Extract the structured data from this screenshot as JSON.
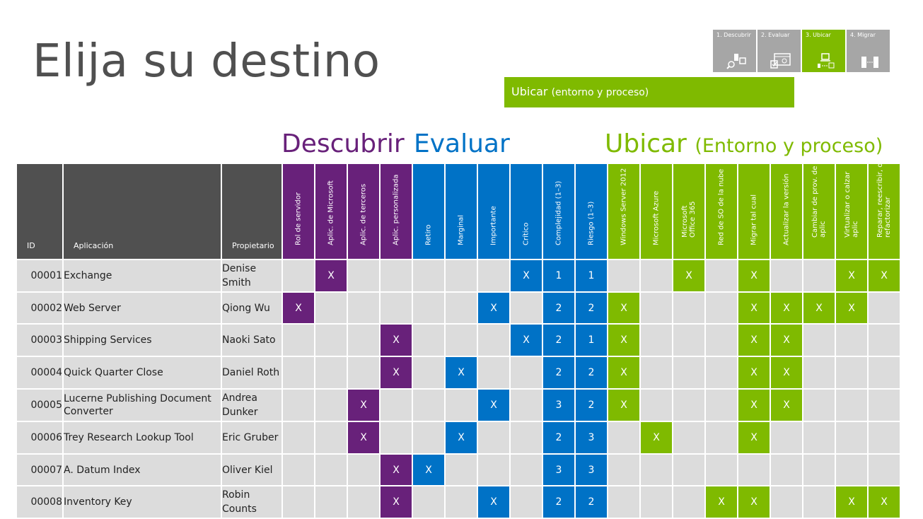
{
  "page": {
    "title": "Elija su destino",
    "banner_main": "Ubicar",
    "banner_paren": "(entorno y proceso)"
  },
  "steps": [
    {
      "label": "1. Descubrir",
      "active": false
    },
    {
      "label": "2. Evaluar",
      "active": false
    },
    {
      "label": "3. Ubicar",
      "active": true
    },
    {
      "label": "4. Migrar",
      "active": false
    }
  ],
  "sections": {
    "descubrir": "Descubrir",
    "evaluar": "Evaluar",
    "ubicar_main": "Ubicar",
    "ubicar_paren": "(Entorno y proceso)"
  },
  "colors": {
    "purple": "#68217a",
    "blue": "#0072c6",
    "green": "#7fba00",
    "gray": "#505050",
    "cell": "#dcdcdc"
  },
  "headers": {
    "fixed": [
      "ID",
      "Aplicación",
      "Propietario"
    ],
    "descubrir": [
      "Rol de servidor",
      "Aplic. de Microsoft",
      "Aplic. de terceros",
      "Aplic. personalizada"
    ],
    "evaluar": [
      "Retiro",
      "Marginal",
      "Importante",
      "Crítico",
      "Complejidad (1–3)",
      "Riesgo (1–3)"
    ],
    "ubicar_env": [
      "Windows Server 2012",
      "Microsoft Azure",
      "Microsoft Office 365",
      "Red de SO de la nube"
    ],
    "ubicar_proc": [
      "Migrar tal cual",
      "Actualizar la versión",
      "Cambiar de prov. de aplic",
      "Virtualizar o calzar aplic",
      "Reparar, reescribir, o refactorizar"
    ]
  },
  "rows": [
    {
      "id": "00001",
      "app": "Exchange",
      "owner": "Denise Smith",
      "cells": [
        "",
        "X",
        "",
        "",
        "",
        "",
        "",
        "X",
        "1",
        "1",
        "",
        "",
        "X",
        "",
        "X",
        "",
        "",
        "X",
        "X"
      ]
    },
    {
      "id": "00002",
      "app": "Web Server",
      "owner": "Qiong Wu",
      "cells": [
        "X",
        "",
        "",
        "",
        "",
        "",
        "X",
        "",
        "2",
        "2",
        "X",
        "",
        "",
        "",
        "X",
        "X",
        "X",
        "X",
        ""
      ]
    },
    {
      "id": "00003",
      "app": "Shipping Services",
      "owner": "Naoki Sato",
      "cells": [
        "",
        "",
        "",
        "X",
        "",
        "",
        "",
        "X",
        "2",
        "1",
        "X",
        "",
        "",
        "",
        "X",
        "X",
        "",
        "",
        ""
      ]
    },
    {
      "id": "00004",
      "app": "Quick Quarter Close",
      "owner": "Daniel Roth",
      "cells": [
        "",
        "",
        "",
        "X",
        "",
        "X",
        "",
        "",
        "2",
        "2",
        "X",
        "",
        "",
        "",
        "X",
        "X",
        "",
        "",
        ""
      ]
    },
    {
      "id": "00005",
      "app": "Lucerne Publishing Document Converter",
      "owner": "Andrea Dunker",
      "cells": [
        "",
        "",
        "X",
        "",
        "",
        "",
        "X",
        "",
        "3",
        "2",
        "X",
        "",
        "",
        "",
        "X",
        "X",
        "",
        "",
        ""
      ]
    },
    {
      "id": "00006",
      "app": "Trey Research Lookup Tool",
      "owner": "Eric Gruber",
      "cells": [
        "",
        "",
        "X",
        "",
        "",
        "X",
        "",
        "",
        "2",
        "3",
        "",
        "X",
        "",
        "",
        "X",
        "",
        "",
        "",
        ""
      ]
    },
    {
      "id": "00007",
      "app": "A. Datum Index",
      "owner": "Oliver Kiel",
      "cells": [
        "",
        "",
        "",
        "X",
        "X",
        "",
        "",
        "",
        "3",
        "3",
        "",
        "",
        "",
        "",
        "",
        "",
        "",
        "",
        ""
      ]
    },
    {
      "id": "00008",
      "app": "Inventory Key",
      "owner": "Robin Counts",
      "cells": [
        "",
        "",
        "",
        "X",
        "",
        "",
        "X",
        "",
        "2",
        "2",
        "",
        "",
        "",
        "X",
        "X",
        "",
        "",
        "X",
        "X"
      ]
    }
  ]
}
